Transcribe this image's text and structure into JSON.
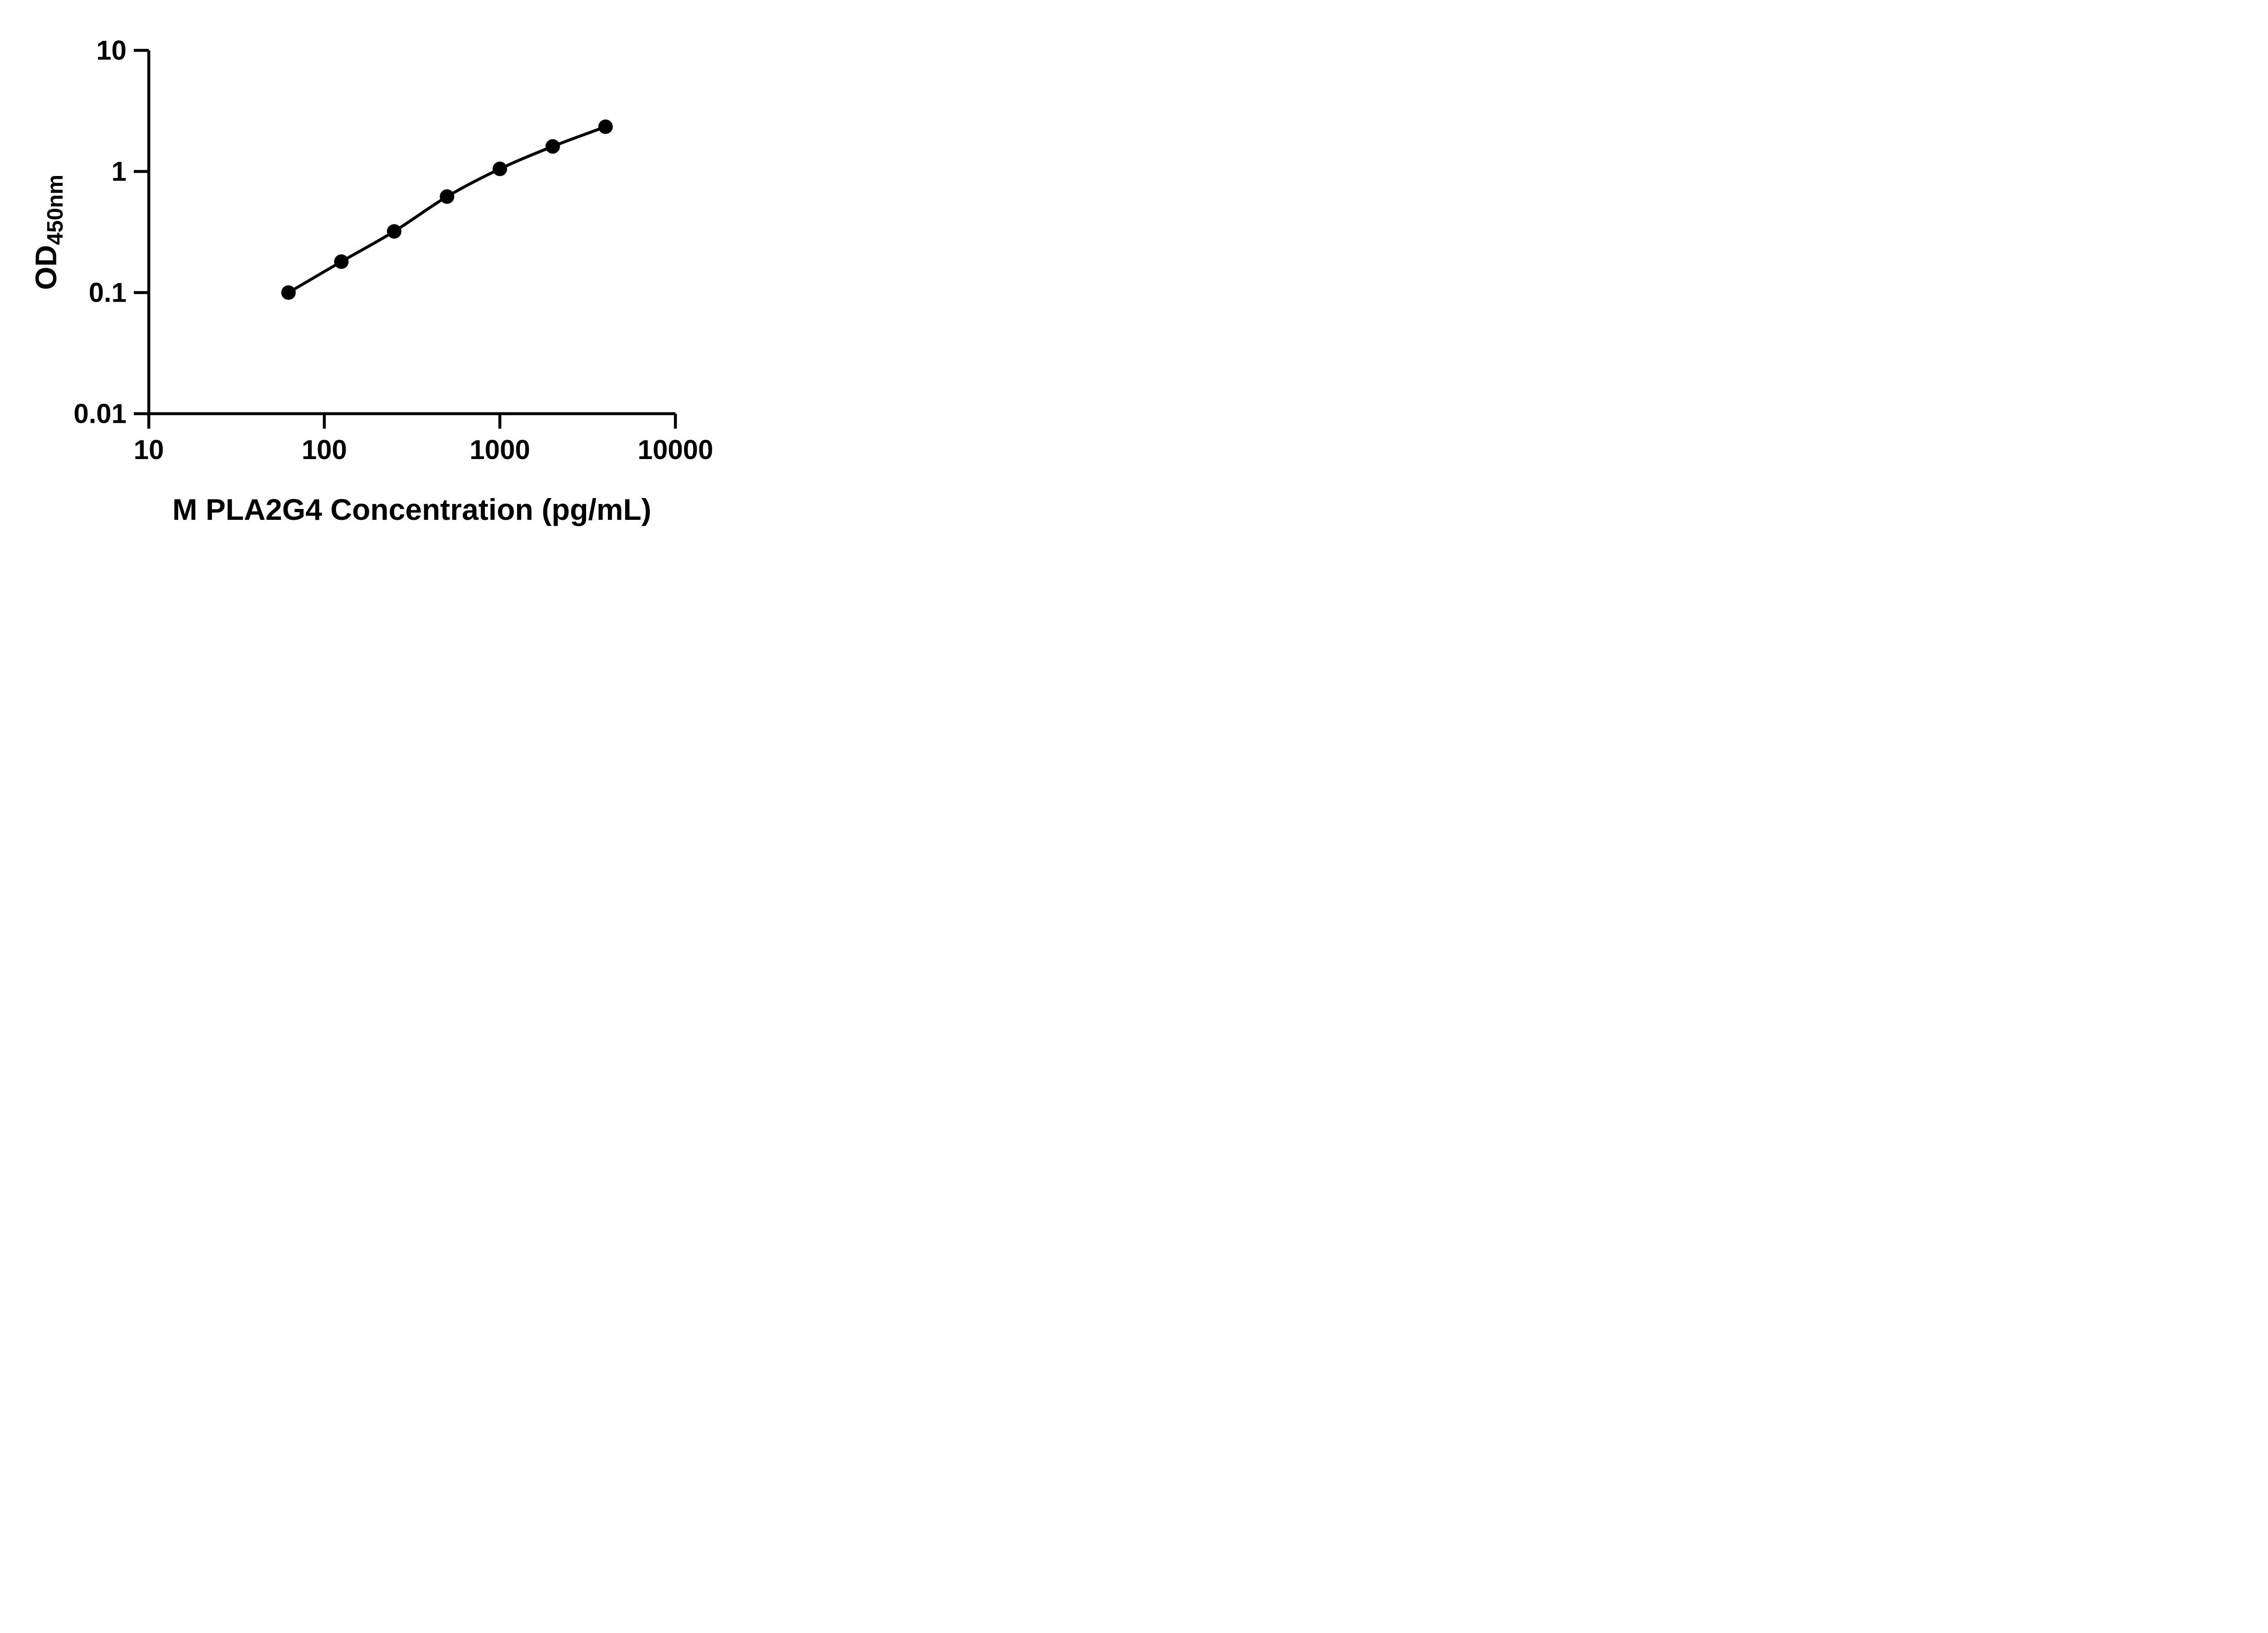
{
  "figure": {
    "background_color": "#ffffff",
    "ink_color": "#000000"
  },
  "chart_data": {
    "type": "scatter",
    "title": "",
    "xlabel": "M PLA2G4 Concentration (pg/mL)",
    "ylabel": "OD",
    "ylabel_subscript": "450nm",
    "x_scale": "log10",
    "y_scale": "log10",
    "xlim": [
      10,
      10000
    ],
    "ylim": [
      0.01,
      10
    ],
    "grid": false,
    "legend": "none",
    "x_ticks": [
      {
        "value": 10,
        "label": "10"
      },
      {
        "value": 100,
        "label": "100"
      },
      {
        "value": 1000,
        "label": "1000"
      },
      {
        "value": 10000,
        "label": "10000"
      }
    ],
    "y_ticks": [
      {
        "value": 10,
        "label": "10"
      },
      {
        "value": 1,
        "label": "1"
      },
      {
        "value": 0.1,
        "label": "0.1"
      },
      {
        "value": 0.01,
        "label": "0.01"
      }
    ],
    "series": [
      {
        "marker": "filled-circle",
        "marker_color": "#000000",
        "line_style": "smooth-solid",
        "line_color": "#000000",
        "points": [
          {
            "x": 62.5,
            "y": 0.1
          },
          {
            "x": 125,
            "y": 0.18
          },
          {
            "x": 250,
            "y": 0.32
          },
          {
            "x": 500,
            "y": 0.62
          },
          {
            "x": 1000,
            "y": 1.05
          },
          {
            "x": 2000,
            "y": 1.61
          },
          {
            "x": 4000,
            "y": 2.34
          }
        ]
      }
    ]
  }
}
